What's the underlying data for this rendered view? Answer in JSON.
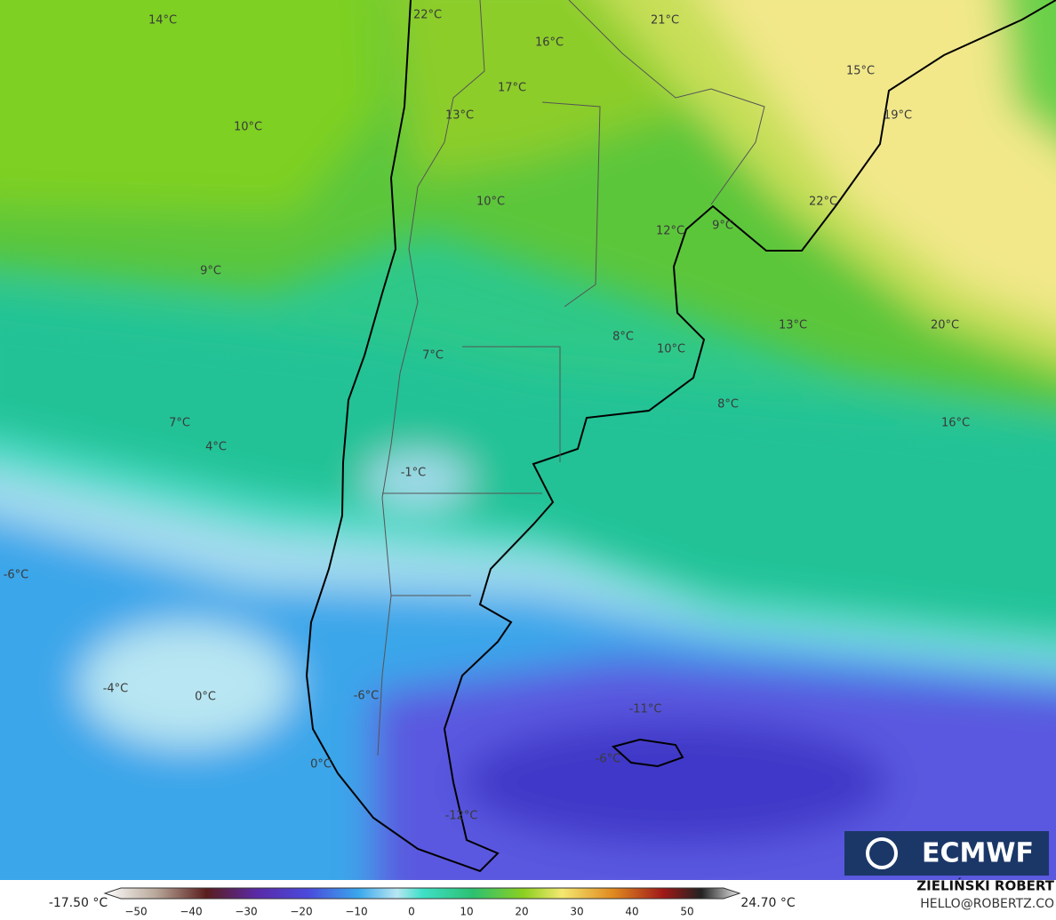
{
  "map": {
    "temperature_labels": [
      "14°C",
      "22°C",
      "21°C",
      "16°C",
      "15°C",
      "17°C",
      "19°C",
      "13°C",
      "10°C",
      "10°C",
      "22°C",
      "12°C",
      "9°C",
      "9°C",
      "13°C",
      "20°C",
      "8°C",
      "10°C",
      "7°C",
      "8°C",
      "16°C",
      "7°C",
      "4°C",
      "-1°C",
      "-6°C",
      "-4°C",
      "0°C",
      "-6°C",
      "-11°C",
      "-6°C",
      "0°C",
      "-12°C"
    ],
    "logo": "ECMWF",
    "colorbar": {
      "min_label": "-17.50 °C",
      "max_label": "24.70 °C",
      "ticks": [
        "−50",
        "−40",
        "−30",
        "−20",
        "−10",
        "0",
        "10",
        "20",
        "30",
        "40",
        "50"
      ]
    },
    "credit": {
      "author": "ZIELIŃSKI ROBERT",
      "contact": "HELLO@ROBERTZ.CO"
    }
  }
}
